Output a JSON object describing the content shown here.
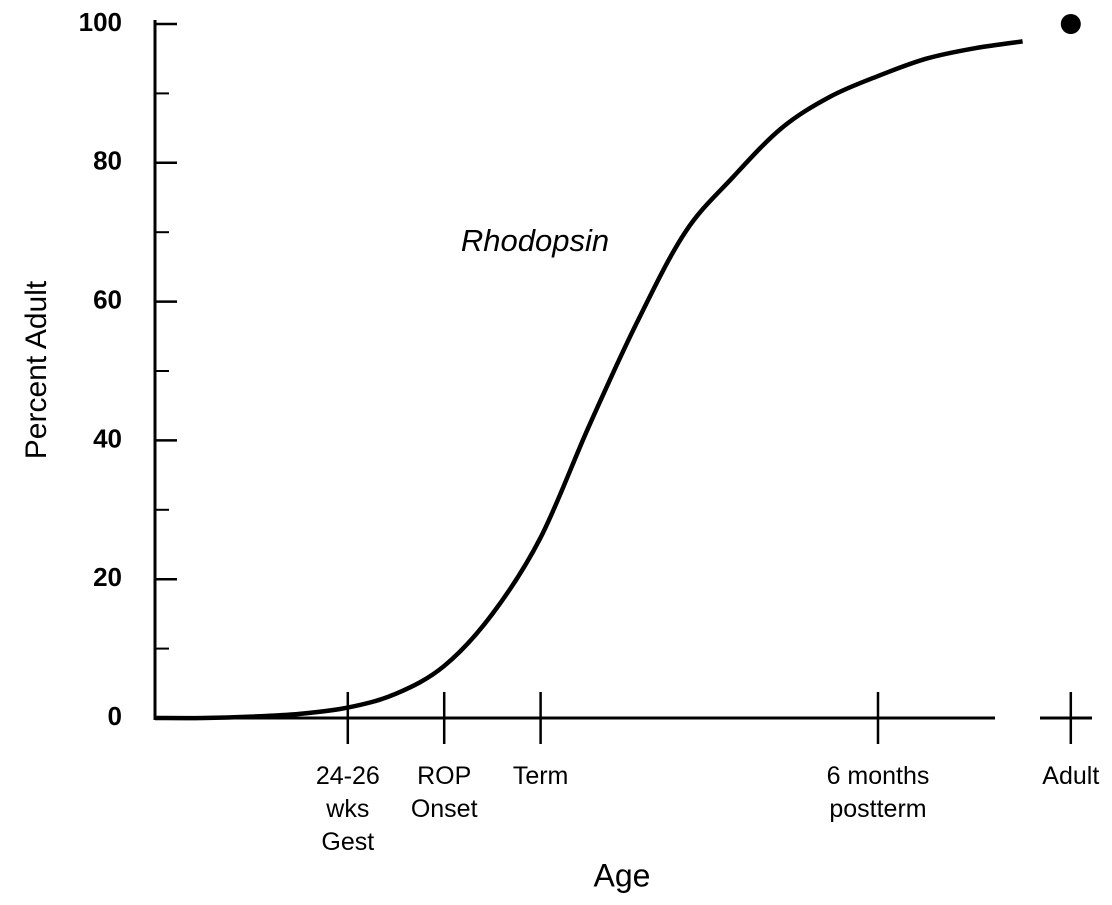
{
  "chart_data": {
    "type": "line",
    "ylabel": "Percent Adult",
    "xlabel": "Age",
    "annotation": "Rhodopsin",
    "categories": [
      null,
      null,
      null,
      null,
      "24-26\nwks\nGest",
      null,
      "ROP\nOnset",
      null,
      "Term",
      null,
      null,
      null,
      null,
      null,
      null,
      "6 months\npostterm",
      null,
      null,
      null,
      "Adult"
    ],
    "series": [
      {
        "name": "Rhodopsin",
        "color": "#000000",
        "values": [
          0,
          0,
          0.2,
          0.6,
          1.5,
          3.5,
          7.5,
          15,
          26,
          42,
          57,
          70,
          78,
          85,
          89.5,
          92.5,
          95,
          96.5,
          97.5,
          null
        ]
      },
      {
        "style": "dot",
        "color": "#000000",
        "values": [
          null,
          null,
          null,
          null,
          null,
          null,
          null,
          null,
          null,
          null,
          null,
          null,
          null,
          null,
          null,
          null,
          null,
          null,
          null,
          100
        ]
      }
    ],
    "ylim": [
      0,
      100
    ],
    "yticks": [
      0,
      20,
      40,
      60,
      80,
      100
    ],
    "yminor_ticks": [
      10,
      30,
      50,
      70,
      90
    ]
  }
}
